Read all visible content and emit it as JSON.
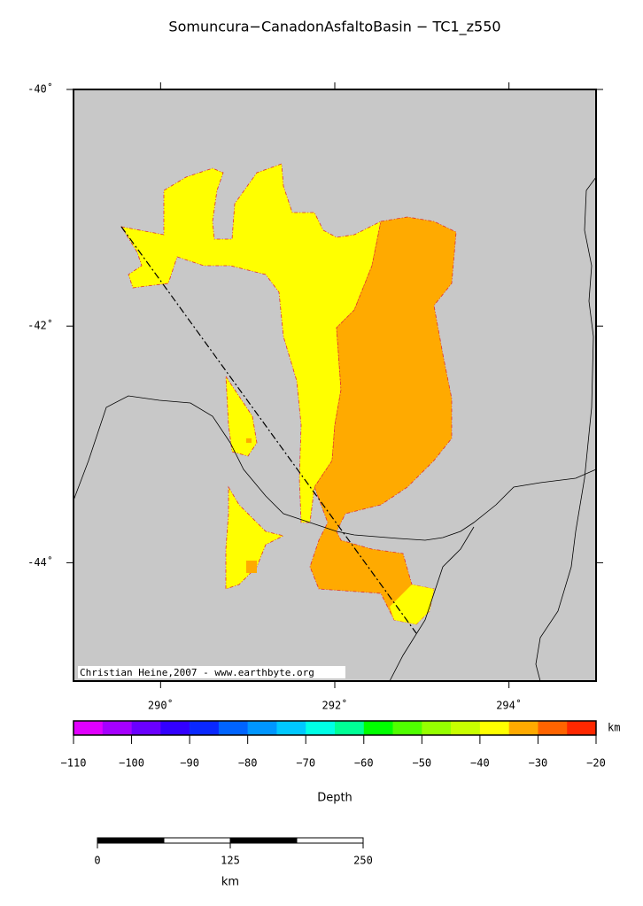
{
  "map": {
    "title": "Somuncura−CanadonAsfaltoBasin − TC1_z550",
    "credit": "Christian Heine,2007 - www.earthbyte.org",
    "xlim": [
      289,
      295
    ],
    "ylim": [
      -45,
      -40
    ],
    "xticks": [
      {
        "value": 290,
        "label": "290˚"
      },
      {
        "value": 292,
        "label": "292˚"
      },
      {
        "value": 294,
        "label": "294˚"
      }
    ],
    "yticks": [
      {
        "value": -40,
        "label": "-40˚"
      },
      {
        "value": -42,
        "label": "-42˚"
      },
      {
        "value": -44,
        "label": "-44˚"
      }
    ],
    "colorbar": {
      "lim": [
        -110,
        -20
      ],
      "colors": [
        "#e100ff",
        "#a500ff",
        "#6a00ff",
        "#3200ff",
        "#0a28ff",
        "#0064ff",
        "#0096ff",
        "#00c8ff",
        "#00ffe6",
        "#00ff96",
        "#00ff00",
        "#50ff00",
        "#96ff00",
        "#c8ff00",
        "#ffff00",
        "#ffaa00",
        "#ff6400",
        "#ff2800"
      ],
      "ticks": [
        {
          "value": -110,
          "label": "−110"
        },
        {
          "value": -100,
          "label": "−100"
        },
        {
          "value": -90,
          "label": "−90"
        },
        {
          "value": -80,
          "label": "−80"
        },
        {
          "value": -70,
          "label": "−70"
        },
        {
          "value": -60,
          "label": "−60"
        },
        {
          "value": -50,
          "label": "−50"
        },
        {
          "value": -40,
          "label": "−40"
        },
        {
          "value": -30,
          "label": "−30"
        },
        {
          "value": -20,
          "label": "−20"
        }
      ],
      "unit": "km",
      "label": "Depth"
    },
    "scalebar": {
      "lim": [
        0,
        250
      ],
      "ticks": [
        0,
        125,
        250
      ],
      "unit": "km"
    }
  }
}
